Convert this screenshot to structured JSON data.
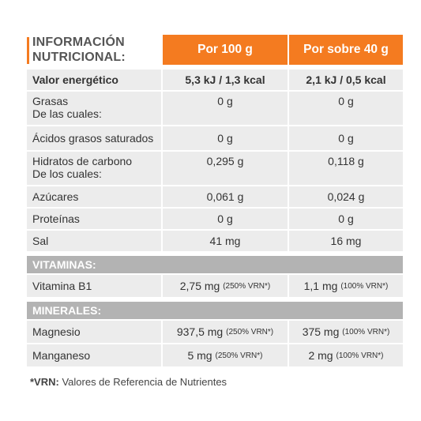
{
  "header": {
    "title_line1": "INFORMACIÓN",
    "title_line2": "NUTRICIONAL:",
    "col1": "Por 100 g",
    "col2": "Por sobre 40 g",
    "accent_color": "#f47b20"
  },
  "rows": {
    "energy": {
      "label": "Valor energético",
      "v100": "5,3 kJ / 1,3 kcal",
      "vsobre": "2,1 kJ / 0,5 kcal"
    },
    "fat": {
      "label1": "Grasas",
      "label2": "De las cuales:",
      "v100": "0 g",
      "vsobre": "0 g"
    },
    "sat": {
      "label": "Ácidos grasos saturados",
      "v100": "0 g",
      "vsobre": "0 g"
    },
    "carbs": {
      "label1": "Hidratos de carbono",
      "label2": "De los cuales:",
      "v100": "0,295 g",
      "vsobre": "0,118 g"
    },
    "sugar": {
      "label": "Azúcares",
      "v100": "0,061 g",
      "vsobre": "0,024 g"
    },
    "protein": {
      "label": "Proteínas",
      "v100": "0 g",
      "vsobre": "0 g"
    },
    "salt": {
      "label": "Sal",
      "v100": "41 mg",
      "vsobre": "16 mg"
    }
  },
  "vitamins": {
    "section_label": "VITAMINAS:",
    "b1": {
      "label": "Vitamina B1",
      "v100": "2,75 mg",
      "v100_vrn": "(250% VRN*)",
      "vsobre": "1,1 mg",
      "vsobre_vrn": "(100% VRN*)"
    }
  },
  "minerals": {
    "section_label": "MINERALES:",
    "mg": {
      "label": "Magnesio",
      "v100": "937,5 mg",
      "v100_vrn": "(250% VRN*)",
      "vsobre": "375 mg",
      "vsobre_vrn": "(100% VRN*)"
    },
    "mn": {
      "label": "Manganeso",
      "v100": "5 mg",
      "v100_vrn": "(250% VRN*)",
      "vsobre": "2 mg",
      "vsobre_vrn": "(100% VRN*)"
    }
  },
  "footnote": {
    "marker": "*VRN:",
    "text": " Valores de Referencia de Nutrientes"
  }
}
